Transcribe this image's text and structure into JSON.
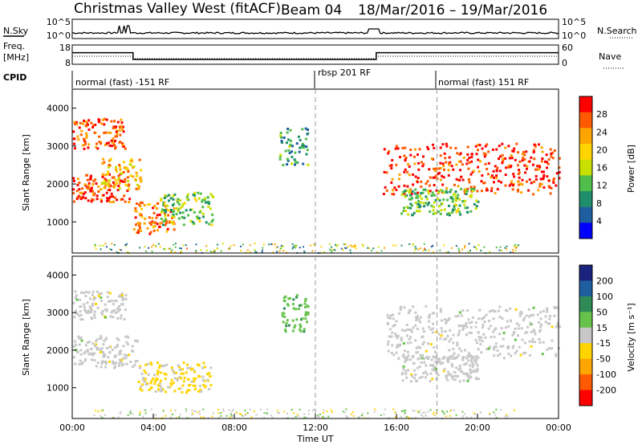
{
  "header": {
    "title_left": "Christmas Valley West (fitACF)",
    "title_beam": "Beam 04",
    "title_dates": "18/Mar/2016 – 19/Mar/2016"
  },
  "noise_panel": {
    "left_label": "N.Sky",
    "right_label": "N.Search",
    "left_ticks": [
      "10^5",
      "10^0"
    ],
    "right_ticks": [
      "10^5",
      "10^0"
    ]
  },
  "freq_panel": {
    "left_label_1": "Freq.",
    "left_label_2": "[MHz]",
    "right_label": "Nave",
    "left_ticks": [
      "18",
      "8"
    ],
    "right_ticks": [
      "60",
      "0"
    ]
  },
  "cpid": {
    "label": "CPID",
    "segments": [
      {
        "text": "normal (fast) -151 RF",
        "start_hour": 0
      },
      {
        "text": "rbsp 201 RF",
        "start_hour": 12
      },
      {
        "text": "normal (fast) 151 RF",
        "start_hour": 18
      }
    ]
  },
  "power_panel": {
    "ylabel": "Slant Range [km]",
    "yticks": [
      "4000",
      "3000",
      "2000",
      "1000"
    ],
    "cbar_label": "Power [dB]",
    "cbar_ticks": [
      "28",
      "24",
      "20",
      "16",
      "12",
      "8",
      "4"
    ],
    "cbar_colors": [
      "#ff0000",
      "#ff5a00",
      "#ffa500",
      "#ffd400",
      "#c8e000",
      "#4fbe4a",
      "#1f8f6b",
      "#1f5fa0",
      "#0000ff"
    ]
  },
  "velocity_panel": {
    "ylabel": "Slant Range [km]",
    "yticks": [
      "4000",
      "3000",
      "2000",
      "1000"
    ],
    "cbar_label": "Velocity [m s⁻¹]",
    "cbar_ticks": [
      "200",
      "100",
      "50",
      "15",
      "-15",
      "-50",
      "-100",
      "-200"
    ],
    "cbar_colors": [
      "#1a237e",
      "#1f5fa0",
      "#2e8b57",
      "#66c24a",
      "#c8c8c8",
      "#ffd400",
      "#ffa500",
      "#ff5a00",
      "#ff0000"
    ]
  },
  "time_axis": {
    "label": "Time UT",
    "ticks": [
      "00:00",
      "04:00",
      "08:00",
      "12:00",
      "16:00",
      "20:00",
      "00:00"
    ]
  },
  "chart_data": {
    "type": "heatmap",
    "x_range_hours": [
      0,
      24
    ],
    "y_range_km": [
      180,
      4500
    ],
    "x_tick_hours": [
      0,
      4,
      8,
      12,
      16,
      20,
      24
    ],
    "y_ticks_km": [
      1000,
      2000,
      3000,
      4000
    ],
    "power_scale_db": [
      0,
      30
    ],
    "velocity_scale_ms": [
      -250,
      250
    ],
    "frequency_mhz_segments": [
      {
        "from_hour": 0,
        "to_hour": 3,
        "value": 14
      },
      {
        "from_hour": 3,
        "to_hour": 15,
        "value": 10.5
      },
      {
        "from_hour": 15,
        "to_hour": 24,
        "value": 14
      }
    ],
    "power_regions": [
      {
        "t0": 0.0,
        "t1": 2.8,
        "r0": 1550,
        "r1": 2300,
        "db": 27
      },
      {
        "t0": 0.0,
        "t1": 2.6,
        "r0": 2950,
        "r1": 3750,
        "db": 25
      },
      {
        "t0": 1.4,
        "t1": 3.4,
        "r0": 1900,
        "r1": 2700,
        "db": 20
      },
      {
        "t0": 3.0,
        "t1": 5.0,
        "r0": 700,
        "r1": 1550,
        "db": 24
      },
      {
        "t0": 4.3,
        "t1": 7.0,
        "r0": 950,
        "r1": 1800,
        "db": 13
      },
      {
        "t0": 10.2,
        "t1": 11.6,
        "r0": 2500,
        "r1": 3500,
        "db": 9
      },
      {
        "t0": 15.3,
        "t1": 24.0,
        "r0": 1750,
        "r1": 3100,
        "db": 27
      },
      {
        "t0": 16.2,
        "t1": 20.0,
        "r0": 1200,
        "r1": 1900,
        "db": 12
      }
    ],
    "velocity_regions": [
      {
        "t0": 0.0,
        "t1": 3.2,
        "r0": 1550,
        "r1": 2400,
        "v": 0
      },
      {
        "t0": 0.0,
        "t1": 2.6,
        "r0": 2850,
        "r1": 3600,
        "v": 0
      },
      {
        "t0": 3.2,
        "t1": 6.8,
        "r0": 900,
        "r1": 1700,
        "v": -40
      },
      {
        "t0": 10.2,
        "t1": 11.6,
        "r0": 2500,
        "r1": 3500,
        "v": 60
      },
      {
        "t0": 15.5,
        "t1": 24.0,
        "r0": 1800,
        "r1": 3200,
        "v": 0
      },
      {
        "t0": 16.2,
        "t1": 20.0,
        "r0": 1200,
        "r1": 1900,
        "v": 0
      }
    ]
  }
}
